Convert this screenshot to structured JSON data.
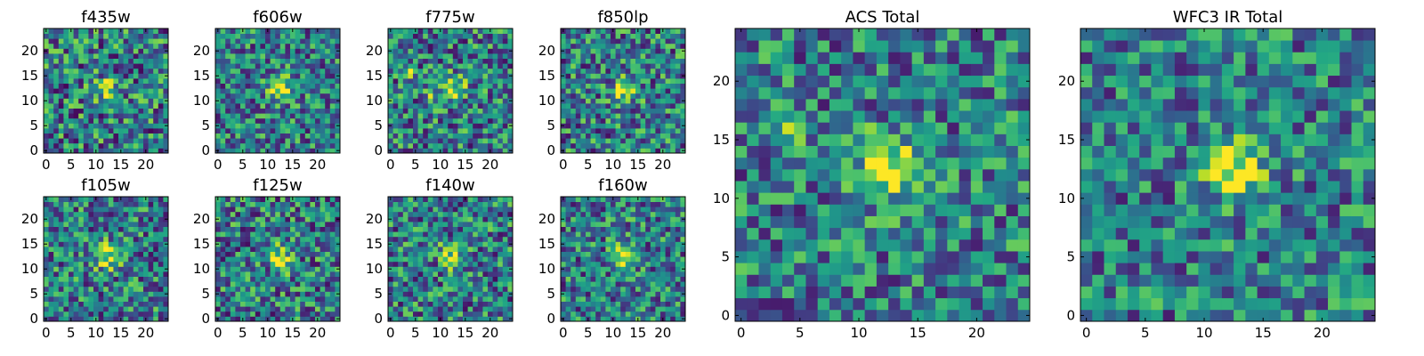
{
  "chart_data": {
    "type": "heatmap",
    "colormap": "viridis",
    "grid": false,
    "panels": [
      {
        "title": "f435w",
        "size": 25,
        "seed": 11,
        "peak": 0.55,
        "spots": [],
        "xticks": [
          "0",
          "5",
          "10",
          "15",
          "20"
        ],
        "yticks": [
          "0",
          "5",
          "10",
          "15",
          "20"
        ]
      },
      {
        "title": "f606w",
        "size": 25,
        "seed": 23,
        "peak": 0.85,
        "spots": [],
        "xticks": [
          "0",
          "5",
          "10",
          "15",
          "20"
        ],
        "yticks": [
          "0",
          "5",
          "10",
          "15",
          "20"
        ]
      },
      {
        "title": "f775w",
        "size": 25,
        "seed": 37,
        "peak": 0.7,
        "spots": [
          [
            4,
            16,
            0.6
          ],
          [
            8,
            11,
            0.4
          ]
        ],
        "xticks": [
          "0",
          "5",
          "10",
          "15",
          "20"
        ],
        "yticks": [
          "0",
          "5",
          "10",
          "15",
          "20"
        ]
      },
      {
        "title": "f850lp",
        "size": 25,
        "seed": 41,
        "peak": 0.7,
        "spots": [],
        "xticks": [
          "0",
          "5",
          "10",
          "15",
          "20"
        ],
        "yticks": [
          "0",
          "5",
          "10",
          "15",
          "20"
        ]
      },
      {
        "title": "f105w",
        "size": 25,
        "seed": 53,
        "peak": 0.75,
        "spots": [],
        "xticks": [
          "0",
          "5",
          "10",
          "15",
          "20"
        ],
        "yticks": [
          "0",
          "5",
          "10",
          "15",
          "20"
        ]
      },
      {
        "title": "f125w",
        "size": 25,
        "seed": 67,
        "peak": 0.7,
        "spots": [],
        "xticks": [
          "0",
          "5",
          "10",
          "15",
          "20"
        ],
        "yticks": [
          "0",
          "5",
          "10",
          "15",
          "20"
        ]
      },
      {
        "title": "f140w",
        "size": 25,
        "seed": 71,
        "peak": 0.7,
        "spots": [],
        "xticks": [
          "0",
          "5",
          "10",
          "15",
          "20"
        ],
        "yticks": [
          "0",
          "5",
          "10",
          "15",
          "20"
        ]
      },
      {
        "title": "f160w",
        "size": 25,
        "seed": 89,
        "peak": 0.8,
        "spots": [],
        "xticks": [
          "0",
          "5",
          "10",
          "15",
          "20"
        ],
        "yticks": [
          "0",
          "5",
          "10",
          "15",
          "20"
        ]
      },
      {
        "title": "ACS Total",
        "size": 25,
        "seed": 97,
        "peak": 0.95,
        "spots": [
          [
            4,
            16,
            0.75
          ]
        ],
        "xticks": [
          "0",
          "5",
          "10",
          "15",
          "20"
        ],
        "yticks": [
          "0",
          "5",
          "10",
          "15",
          "20"
        ]
      },
      {
        "title": "WFC3 IR Total",
        "size": 25,
        "seed": 103,
        "peak": 1.0,
        "spots": [],
        "xticks": [
          "0",
          "5",
          "10",
          "15",
          "20"
        ],
        "yticks": [
          "0",
          "5",
          "10",
          "15",
          "20"
        ]
      }
    ]
  }
}
